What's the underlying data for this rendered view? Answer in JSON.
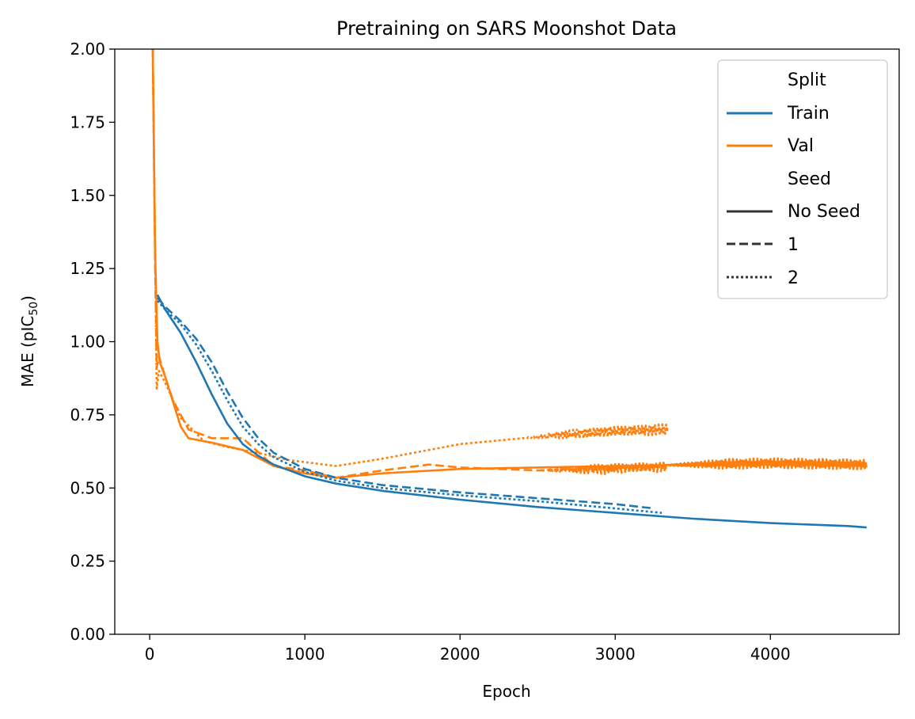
{
  "chart_data": {
    "type": "line",
    "title": "Pretraining on SARS Moonshot Data",
    "xlabel": "Epoch",
    "ylabel_main": "MAE (pIC",
    "ylabel_sub": "50",
    "ylabel_close": ")",
    "xlim": [
      -225,
      4830
    ],
    "ylim": [
      0,
      2
    ],
    "xticks": [
      0,
      1000,
      2000,
      3000,
      4000
    ],
    "xtick_labels": [
      "0",
      "1000",
      "2000",
      "3000",
      "4000"
    ],
    "yticks": [
      0,
      0.25,
      0.5,
      0.75,
      1.0,
      1.25,
      1.5,
      1.75,
      2.0
    ],
    "ytick_labels": [
      "0.00",
      "0.25",
      "0.50",
      "0.75",
      "1.00",
      "1.25",
      "1.50",
      "1.75",
      "2.00"
    ],
    "grid": false,
    "legend_position": "top-right",
    "legend": {
      "split_title": "Split",
      "train_label": "Train",
      "val_label": "Val",
      "seed_title": "Seed",
      "no_seed_label": "No Seed",
      "seed1_label": "1",
      "seed2_label": "2"
    },
    "colors": {
      "Train": "#1f77b4",
      "Val": "#ff7f0e",
      "Seed": "#333333"
    },
    "series": [
      {
        "split": "Train",
        "seed": "No Seed",
        "points": [
          [
            50,
            1.16
          ],
          [
            100,
            1.11
          ],
          [
            200,
            1.03
          ],
          [
            300,
            0.93
          ],
          [
            400,
            0.82
          ],
          [
            500,
            0.72
          ],
          [
            600,
            0.65
          ],
          [
            700,
            0.61
          ],
          [
            800,
            0.58
          ],
          [
            1000,
            0.54
          ],
          [
            1200,
            0.515
          ],
          [
            1500,
            0.49
          ],
          [
            2000,
            0.46
          ],
          [
            2500,
            0.435
          ],
          [
            3000,
            0.415
          ],
          [
            3500,
            0.395
          ],
          [
            4000,
            0.38
          ],
          [
            4500,
            0.37
          ],
          [
            4620,
            0.365
          ]
        ]
      },
      {
        "split": "Train",
        "seed": "1",
        "points": [
          [
            50,
            1.15
          ],
          [
            100,
            1.12
          ],
          [
            200,
            1.07
          ],
          [
            300,
            1.01
          ],
          [
            400,
            0.93
          ],
          [
            500,
            0.83
          ],
          [
            600,
            0.74
          ],
          [
            700,
            0.67
          ],
          [
            800,
            0.62
          ],
          [
            1000,
            0.565
          ],
          [
            1200,
            0.535
          ],
          [
            1500,
            0.51
          ],
          [
            2000,
            0.485
          ],
          [
            2500,
            0.465
          ],
          [
            3000,
            0.445
          ],
          [
            3250,
            0.43
          ]
        ]
      },
      {
        "split": "Train",
        "seed": "2",
        "points": [
          [
            50,
            1.14
          ],
          [
            100,
            1.11
          ],
          [
            200,
            1.06
          ],
          [
            300,
            0.99
          ],
          [
            400,
            0.9
          ],
          [
            500,
            0.8
          ],
          [
            600,
            0.71
          ],
          [
            700,
            0.65
          ],
          [
            800,
            0.605
          ],
          [
            1000,
            0.555
          ],
          [
            1200,
            0.525
          ],
          [
            1500,
            0.5
          ],
          [
            2000,
            0.475
          ],
          [
            2500,
            0.455
          ],
          [
            3000,
            0.43
          ],
          [
            3300,
            0.415
          ]
        ]
      },
      {
        "split": "Val",
        "seed": "No Seed",
        "noise_from": 3300,
        "noise_amp": 0.012,
        "points": [
          [
            20,
            2.0
          ],
          [
            35,
            1.3
          ],
          [
            50,
            1.0
          ],
          [
            65,
            0.93
          ],
          [
            100,
            0.88
          ],
          [
            200,
            0.71
          ],
          [
            250,
            0.67
          ],
          [
            400,
            0.655
          ],
          [
            600,
            0.63
          ],
          [
            800,
            0.575
          ],
          [
            1000,
            0.55
          ],
          [
            1200,
            0.535
          ],
          [
            1500,
            0.55
          ],
          [
            2000,
            0.565
          ],
          [
            2500,
            0.57
          ],
          [
            3000,
            0.575
          ],
          [
            3500,
            0.58
          ],
          [
            4000,
            0.585
          ],
          [
            4620,
            0.58
          ]
        ]
      },
      {
        "split": "Val",
        "seed": "1",
        "noise_from": 2500,
        "noise_amp": 0.012,
        "points": [
          [
            20,
            2.0
          ],
          [
            35,
            1.25
          ],
          [
            45,
            0.91
          ],
          [
            60,
            0.95
          ],
          [
            100,
            0.88
          ],
          [
            150,
            0.8
          ],
          [
            250,
            0.7
          ],
          [
            400,
            0.67
          ],
          [
            600,
            0.67
          ],
          [
            800,
            0.575
          ],
          [
            1000,
            0.56
          ],
          [
            1200,
            0.535
          ],
          [
            1500,
            0.56
          ],
          [
            1800,
            0.58
          ],
          [
            2000,
            0.57
          ],
          [
            2500,
            0.56
          ],
          [
            3000,
            0.565
          ],
          [
            3330,
            0.57
          ]
        ]
      },
      {
        "split": "Val",
        "seed": "2",
        "noise_from": 2400,
        "noise_amp": 0.013,
        "points": [
          [
            20,
            2.0
          ],
          [
            35,
            1.3
          ],
          [
            45,
            0.84
          ],
          [
            60,
            0.9
          ],
          [
            100,
            0.86
          ],
          [
            200,
            0.74
          ],
          [
            350,
            0.66
          ],
          [
            500,
            0.64
          ],
          [
            700,
            0.62
          ],
          [
            900,
            0.595
          ],
          [
            1200,
            0.575
          ],
          [
            1500,
            0.6
          ],
          [
            1800,
            0.63
          ],
          [
            2000,
            0.65
          ],
          [
            2500,
            0.675
          ],
          [
            3000,
            0.695
          ],
          [
            3340,
            0.7
          ]
        ]
      }
    ]
  }
}
